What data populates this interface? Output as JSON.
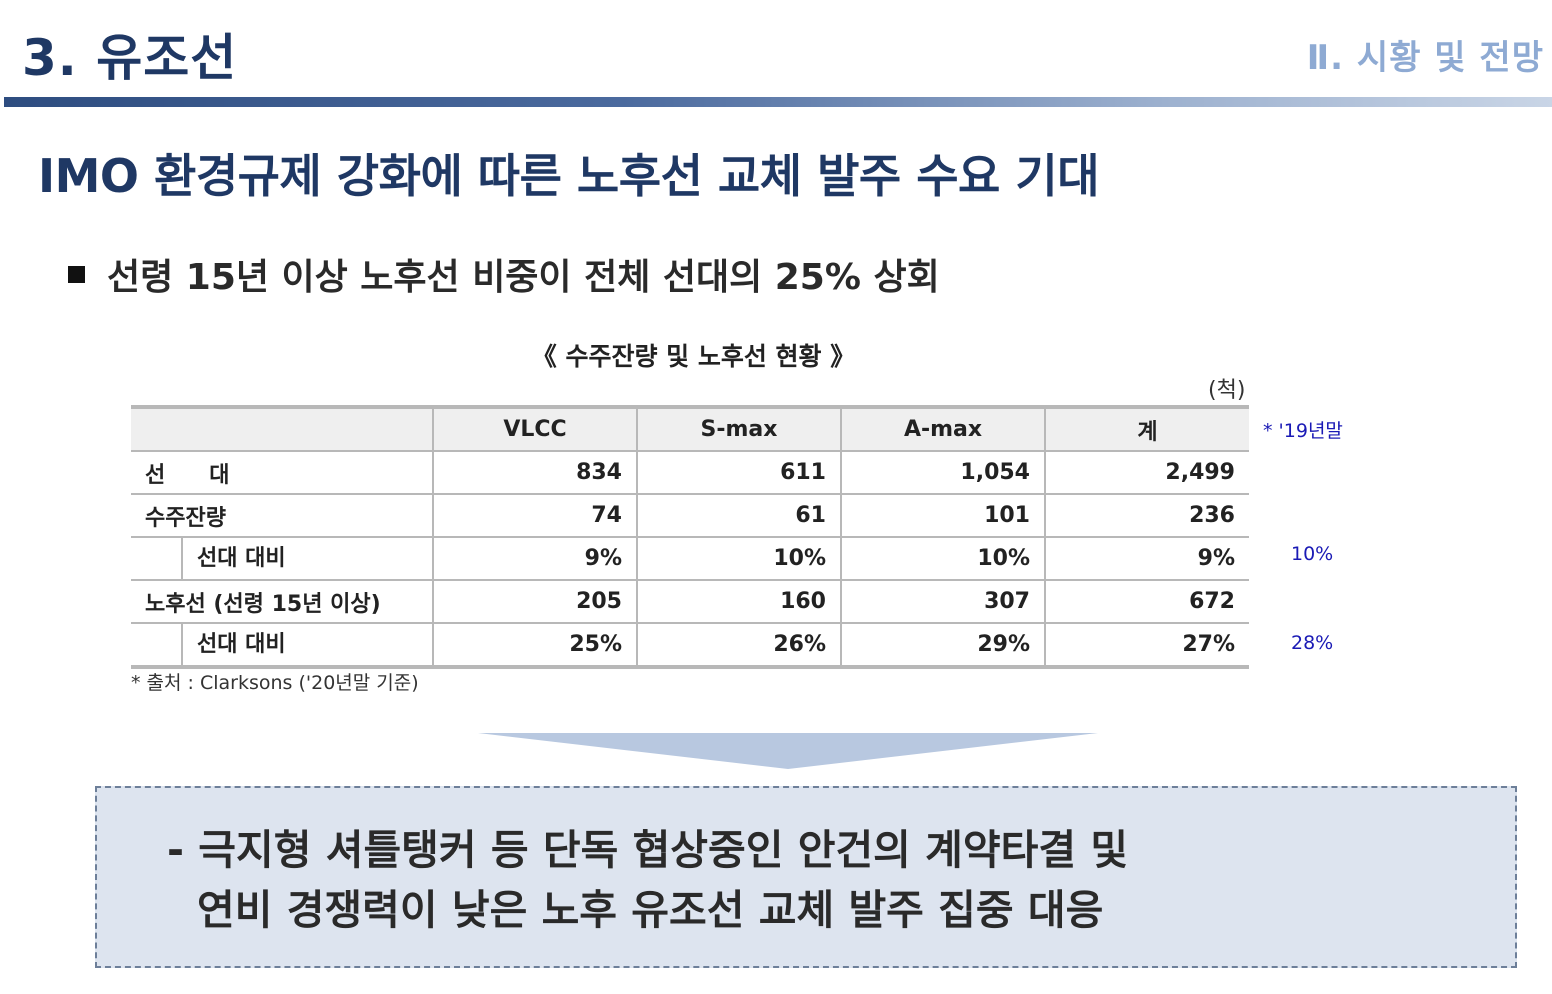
{
  "header": {
    "section_title": "3. 유조선",
    "chapter": "Ⅱ. 시황 및 전망"
  },
  "headline": "IMO 환경규제 강화에 따른 노후선 교체 발주 수요 기대",
  "bullet": "선령 15년 이상 노후선 비중이 전체 선대의 25% 상회",
  "table": {
    "title": "《 수주잔량 및 노후선 현황 》",
    "unit": "(척)",
    "columns": [
      "",
      "VLCC",
      "S-max",
      "A-max",
      "계"
    ],
    "rows": [
      {
        "label": "선　　대",
        "values": [
          "834",
          "611",
          "1,054",
          "2,499"
        ]
      },
      {
        "label": "수주잔량",
        "values": [
          "74",
          "61",
          "101",
          "236"
        ]
      },
      {
        "label": "선대 대비",
        "values": [
          "9%",
          "10%",
          "10%",
          "9%"
        ]
      },
      {
        "label": "노후선 (선령 15년 이상)",
        "values": [
          "205",
          "160",
          "307",
          "672"
        ]
      },
      {
        "label": "선대 대비",
        "values": [
          "25%",
          "26%",
          "29%",
          "27%"
        ]
      }
    ],
    "side_notes": {
      "header": "* '19년말",
      "row3": "10%",
      "row5": "28%"
    },
    "source": "* 출처 : Clarksons ('20년말 기준)"
  },
  "callout": {
    "line1": "- 극지형 셔틀탱커 등 단독 협상중인 안건의 계약타결 및",
    "line2": "연비 경쟁력이 낮은 노후 유조선 교체 발주 집중 대응"
  },
  "colors": {
    "title_navy": "#1f3864",
    "chapter_lightblue": "#8eaad3",
    "note_blue": "#1a1ab5",
    "callout_bg": "#dde4ef"
  }
}
